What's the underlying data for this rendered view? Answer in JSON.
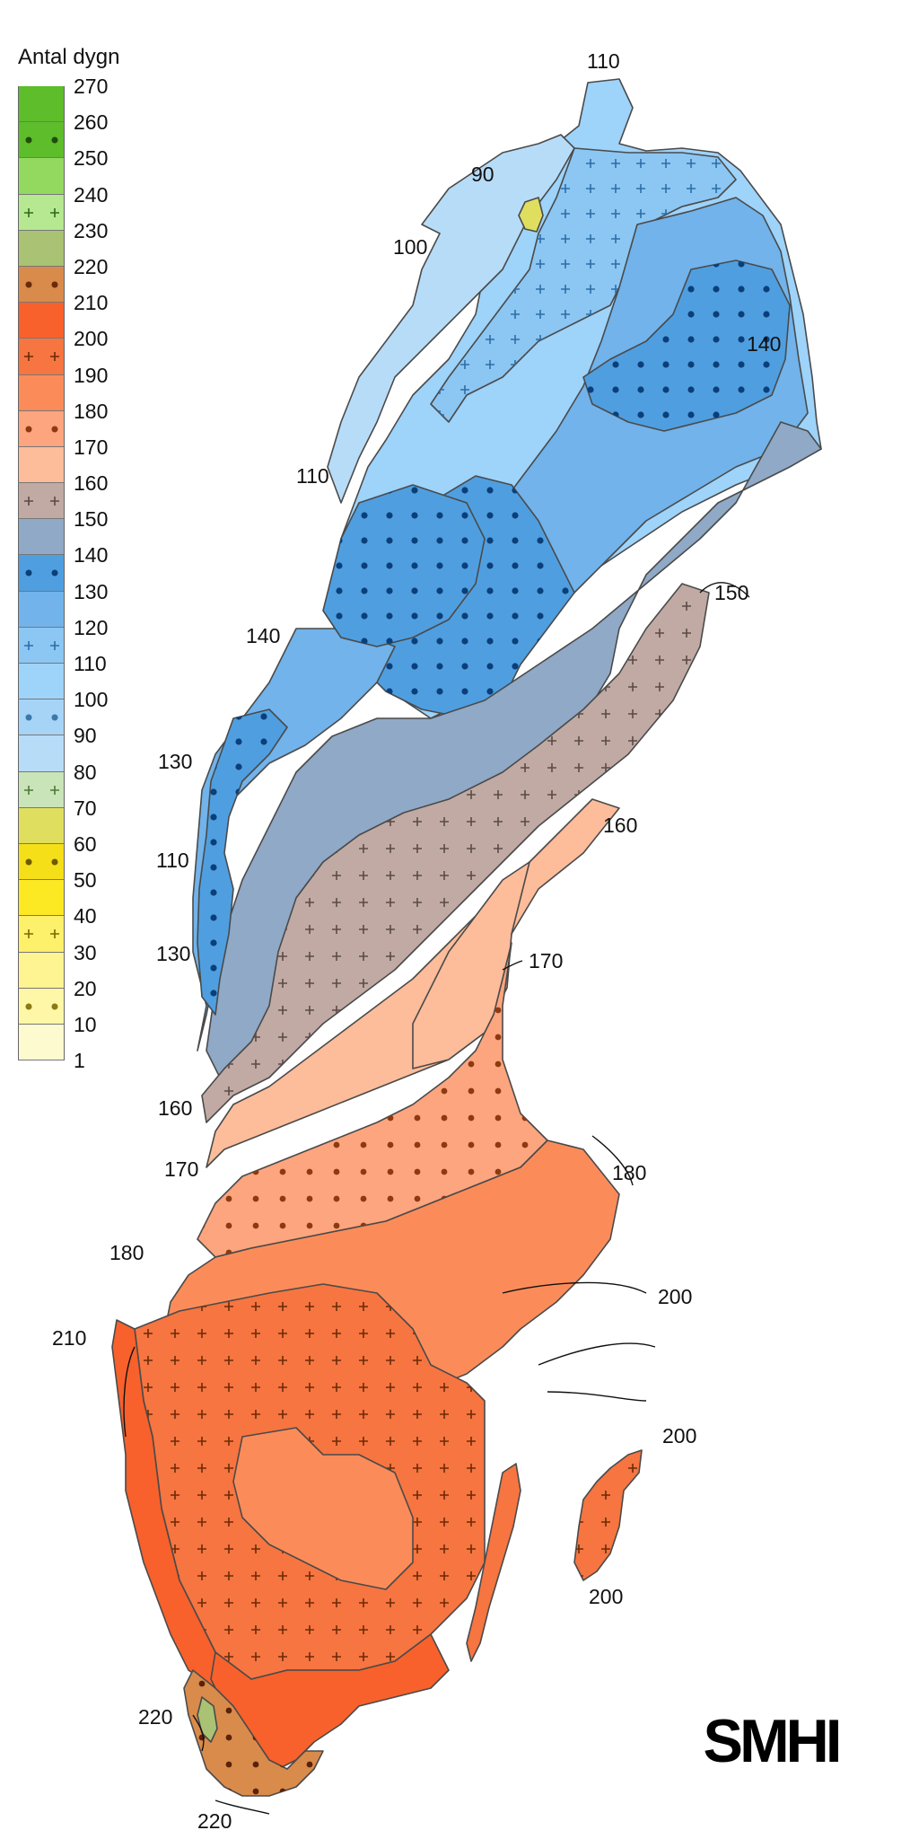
{
  "legend": {
    "title": "Antal dygn",
    "ticks": [
      "270",
      "260",
      "250",
      "240",
      "230",
      "220",
      "210",
      "200",
      "190",
      "180",
      "170",
      "160",
      "150",
      "140",
      "130",
      "120",
      "110",
      "100",
      "90",
      "80",
      "70",
      "60",
      "50",
      "40",
      "30",
      "20",
      "10",
      "1"
    ],
    "bands": [
      {
        "color": "#5dbd2b",
        "pattern": "none"
      },
      {
        "color": "#5dbd2b",
        "pattern": "dots",
        "mark": "#1f4d0a"
      },
      {
        "color": "#93d960",
        "pattern": "none"
      },
      {
        "color": "#b5e890",
        "pattern": "plus",
        "mark": "#2f6a1a"
      },
      {
        "color": "#aac273",
        "pattern": "none"
      },
      {
        "color": "#d98b4b",
        "pattern": "dots",
        "mark": "#6b2a08"
      },
      {
        "color": "#f8612b",
        "pattern": "none"
      },
      {
        "color": "#f67540",
        "pattern": "plus",
        "mark": "#6b2a08"
      },
      {
        "color": "#fb8c5a",
        "pattern": "none"
      },
      {
        "color": "#fda57e",
        "pattern": "dots",
        "mark": "#8e3a10"
      },
      {
        "color": "#fdbc9a",
        "pattern": "none"
      },
      {
        "color": "#c1aaa4",
        "pattern": "plus",
        "mark": "#5b4a45"
      },
      {
        "color": "#8fa9c7",
        "pattern": "none"
      },
      {
        "color": "#4f9fe0",
        "pattern": "dots",
        "mark": "#0b3f7a"
      },
      {
        "color": "#71b3ea",
        "pattern": "none"
      },
      {
        "color": "#8cc6f3",
        "pattern": "plus",
        "mark": "#2c6ea8"
      },
      {
        "color": "#9ed3fa",
        "pattern": "none"
      },
      {
        "color": "#a6d4f7",
        "pattern": "dots",
        "mark": "#3b77a8"
      },
      {
        "color": "#b7dcf8",
        "pattern": "none"
      },
      {
        "color": "#c9e4b8",
        "pattern": "plus",
        "mark": "#4d7a35"
      },
      {
        "color": "#e0de5e",
        "pattern": "none"
      },
      {
        "color": "#f5df18",
        "pattern": "dots",
        "mark": "#6b5a00"
      },
      {
        "color": "#fde824",
        "pattern": "none"
      },
      {
        "color": "#fdf06a",
        "pattern": "plus",
        "mark": "#7a6a00"
      },
      {
        "color": "#fef491",
        "pattern": "none"
      },
      {
        "color": "#fef7a8",
        "pattern": "dots",
        "mark": "#8a7a10"
      },
      {
        "color": "#fefad0",
        "pattern": "none"
      }
    ]
  },
  "contour_labels": [
    "110",
    "90",
    "100",
    "140",
    "110",
    "140",
    "150",
    "130",
    "160",
    "110",
    "170",
    "130",
    "160",
    "180",
    "170",
    "180",
    "200",
    "210",
    "200",
    "200",
    "220",
    "220"
  ],
  "logo": {
    "text": "SMHI"
  }
}
